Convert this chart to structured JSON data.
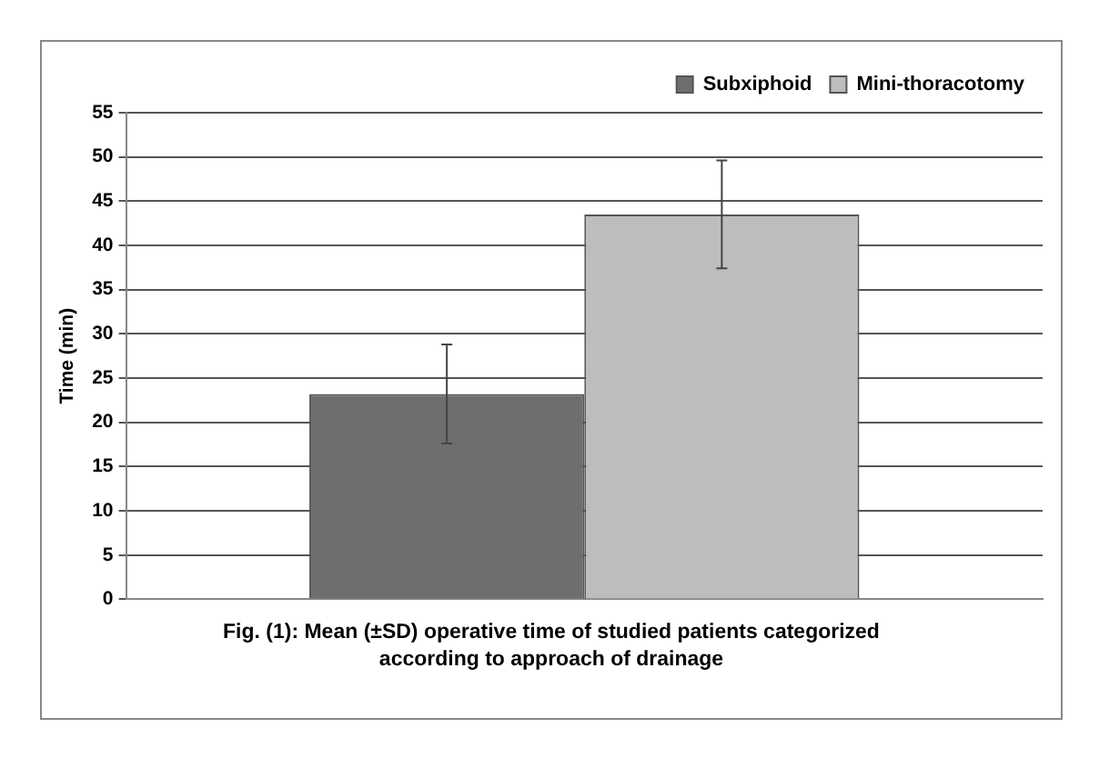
{
  "chart_data": {
    "type": "bar",
    "title": "Fig. (1): Mean (±SD) operative time of studied patients categorized according to approach of drainage",
    "ylabel": "Time (min)",
    "categories": [
      null
    ],
    "series": [
      {
        "name": "Subxiphoid",
        "color": "#6e6e6e",
        "values": [
          23.2
        ],
        "errors": [
          5.6
        ]
      },
      {
        "name": "Mini-thoracotomy",
        "color": "#bdbdbd",
        "values": [
          43.5
        ],
        "errors": [
          6.1
        ]
      }
    ],
    "ylim": [
      0,
      55
    ],
    "yticks": [
      0,
      5,
      10,
      15,
      20,
      25,
      30,
      35,
      40,
      45,
      50,
      55
    ],
    "grid": "y",
    "legend": "top right",
    "tick_labels": "y"
  }
}
